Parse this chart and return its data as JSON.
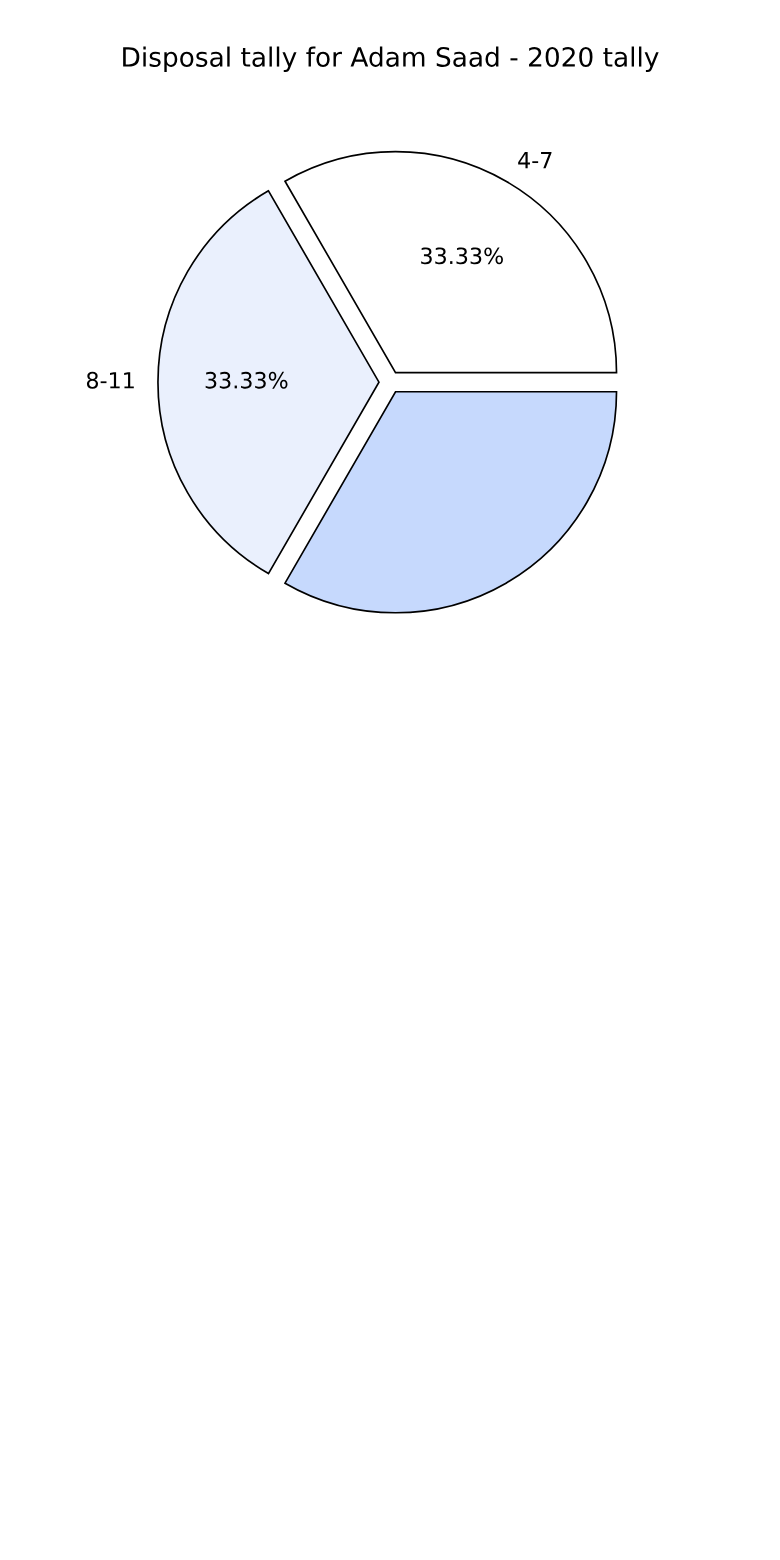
{
  "chart_data": {
    "type": "pie",
    "title": "Disposal tally for Adam Saad - 2020 tally",
    "categories": [
      "4-7",
      "8-11",
      null
    ],
    "values": [
      33.33,
      33.33,
      33.33
    ],
    "colors": [
      "#ffffff",
      "#eaf0fd",
      "#c6d9fd"
    ],
    "value_labels": [
      "33.33%",
      "33.33%",
      null
    ]
  }
}
